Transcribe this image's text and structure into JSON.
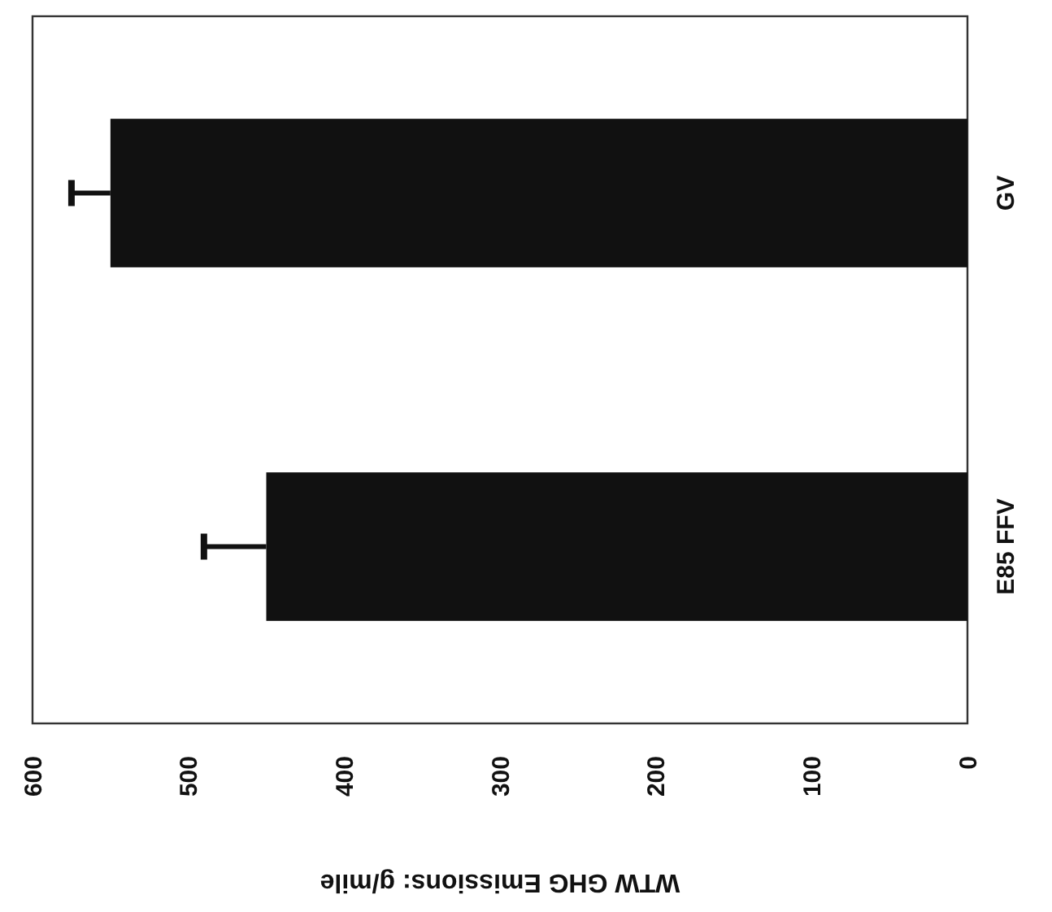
{
  "chart_data": {
    "type": "bar",
    "orientation": "horizontal",
    "xlabel": "WTW GHG Emissions: g/mile",
    "categories": [
      "GV",
      "E85 FFV"
    ],
    "values": [
      550,
      450
    ],
    "errors": [
      [
        550,
        575
      ],
      [
        450,
        490
      ]
    ],
    "color": "#111111",
    "xlim": [
      600,
      0
    ],
    "xticks": [
      600,
      500,
      400,
      300,
      200,
      100,
      0
    ],
    "grid": false
  }
}
